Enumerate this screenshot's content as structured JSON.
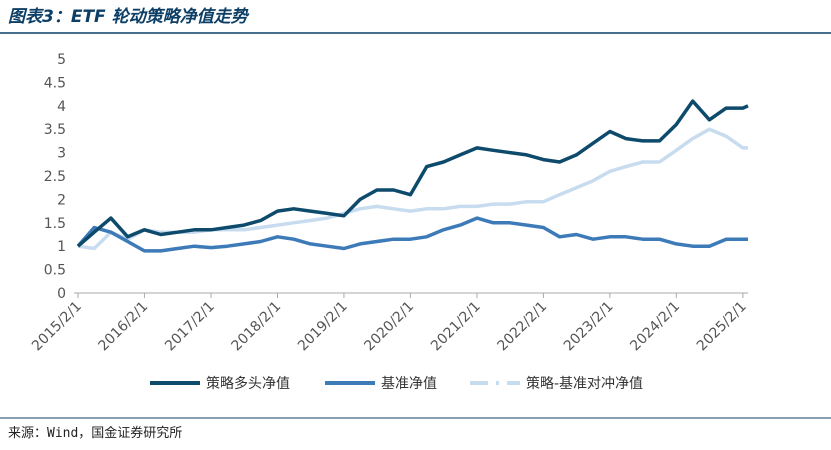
{
  "chart_data": {
    "type": "line",
    "title": "图表3：ETF 轮动策略净值走势",
    "source": "来源：Wind，国金证券研究所",
    "x": [
      "2015/2/1",
      "2015/5/1",
      "2015/8/1",
      "2015/11/1",
      "2016/2/1",
      "2016/5/1",
      "2016/8/1",
      "2016/11/1",
      "2017/2/1",
      "2017/5/1",
      "2017/8/1",
      "2017/11/1",
      "2018/2/1",
      "2018/5/1",
      "2018/8/1",
      "2018/11/1",
      "2019/2/1",
      "2019/5/1",
      "2019/8/1",
      "2019/11/1",
      "2020/2/1",
      "2020/5/1",
      "2020/8/1",
      "2020/11/1",
      "2021/2/1",
      "2021/5/1",
      "2021/8/1",
      "2021/11/1",
      "2022/2/1",
      "2022/5/1",
      "2022/8/1",
      "2022/11/1",
      "2023/2/1",
      "2023/5/1",
      "2023/8/1",
      "2023/11/1",
      "2024/2/1",
      "2024/5/1",
      "2024/8/1",
      "2024/11/1",
      "2025/2/1",
      "2025/3/1"
    ],
    "series": [
      {
        "name": "策略多头净值",
        "color": "#0d4a6b",
        "values": [
          1.0,
          1.3,
          1.6,
          1.2,
          1.35,
          1.25,
          1.3,
          1.35,
          1.35,
          1.4,
          1.45,
          1.55,
          1.75,
          1.8,
          1.75,
          1.7,
          1.65,
          2.0,
          2.2,
          2.2,
          2.1,
          2.7,
          2.8,
          2.95,
          3.1,
          3.05,
          3.0,
          2.95,
          2.85,
          2.8,
          2.95,
          3.2,
          3.45,
          3.3,
          3.25,
          3.25,
          3.6,
          4.1,
          3.7,
          3.95,
          3.95,
          4.0
        ]
      },
      {
        "name": "基准净值",
        "color": "#3d7ab8",
        "values": [
          1.0,
          1.4,
          1.3,
          1.1,
          0.9,
          0.9,
          0.95,
          1.0,
          0.97,
          1.0,
          1.05,
          1.1,
          1.2,
          1.15,
          1.05,
          1.0,
          0.95,
          1.05,
          1.1,
          1.15,
          1.15,
          1.2,
          1.35,
          1.45,
          1.6,
          1.5,
          1.5,
          1.45,
          1.4,
          1.2,
          1.25,
          1.15,
          1.2,
          1.2,
          1.15,
          1.15,
          1.05,
          1.0,
          1.0,
          1.15,
          1.15,
          1.15
        ]
      },
      {
        "name": "策略-基准对冲净值",
        "color": "#c8dcef",
        "values": [
          1.0,
          0.95,
          1.3,
          1.15,
          1.35,
          1.3,
          1.3,
          1.3,
          1.35,
          1.35,
          1.35,
          1.4,
          1.45,
          1.5,
          1.55,
          1.6,
          1.7,
          1.8,
          1.85,
          1.8,
          1.75,
          1.8,
          1.8,
          1.85,
          1.85,
          1.9,
          1.9,
          1.95,
          1.95,
          2.1,
          2.25,
          2.4,
          2.6,
          2.7,
          2.8,
          2.8,
          3.05,
          3.3,
          3.5,
          3.35,
          3.1,
          3.1
        ]
      }
    ],
    "xlim": [
      "2015/2/1",
      "2025/3/1"
    ],
    "xticks": [
      "2015/2/1",
      "2016/2/1",
      "2017/2/1",
      "2018/2/1",
      "2019/2/1",
      "2020/2/1",
      "2021/2/1",
      "2022/2/1",
      "2023/2/1",
      "2024/2/1",
      "2025/2/1"
    ],
    "ylim": [
      0,
      5
    ],
    "yticks": [
      0,
      0.5,
      1,
      1.5,
      2,
      2.5,
      3,
      3.5,
      4,
      4.5,
      5
    ]
  }
}
